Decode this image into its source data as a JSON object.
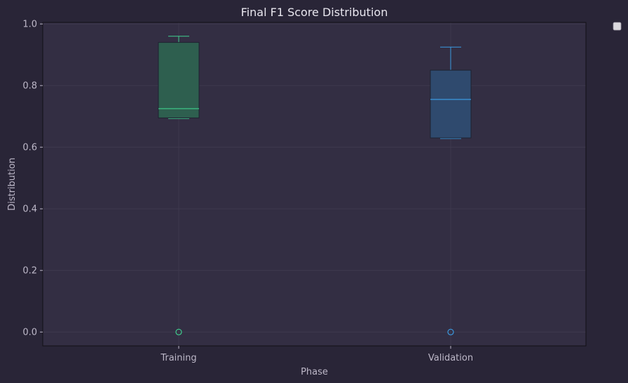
{
  "chart_data": {
    "type": "box",
    "title": "Final F1 Score Distribution",
    "xlabel": "Phase",
    "ylabel": "Distribution",
    "categories": [
      "Training",
      "Validation"
    ],
    "ylim": [
      -0.045,
      1.005
    ],
    "yticks": [
      0.0,
      0.2,
      0.4,
      0.6,
      0.8,
      1.0
    ],
    "ytick_labels": [
      "0.0",
      "0.2",
      "0.4",
      "0.6",
      "0.8",
      "1.0"
    ],
    "grid": true,
    "legend": "top-right, empty",
    "series": [
      {
        "category": "Training",
        "whisker_low": 0.693,
        "q1": 0.695,
        "median": 0.725,
        "q3": 0.94,
        "whisker_high": 0.96,
        "outliers": [
          0.0
        ],
        "box_color": "#2e5f4f",
        "line_color": "#3fcf8e"
      },
      {
        "category": "Validation",
        "whisker_low": 0.628,
        "q1": 0.63,
        "median": 0.755,
        "q3": 0.85,
        "whisker_high": 0.925,
        "outliers": [
          0.0
        ],
        "box_color": "#2f4a6e",
        "line_color": "#3b9ae1"
      }
    ],
    "colors": {
      "figure_bg": "#292537",
      "axes_bg": "#332e43",
      "grid": "#403b50",
      "text": "#bdb8c8",
      "title": "#e8e6ee"
    }
  }
}
